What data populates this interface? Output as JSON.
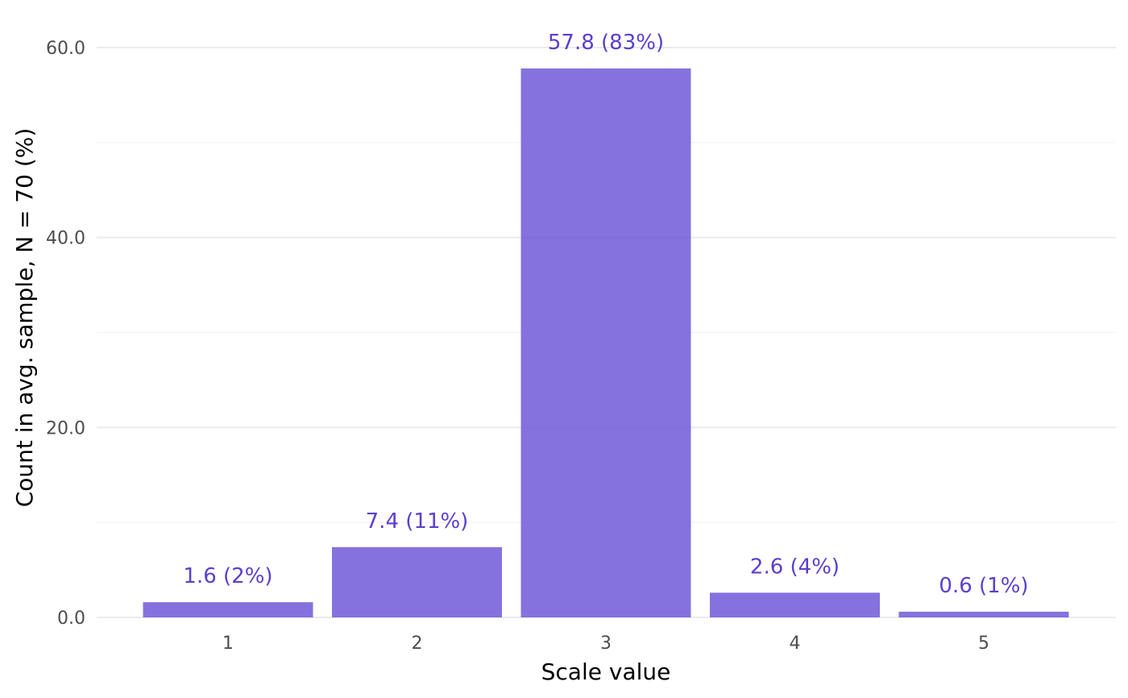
{
  "chart_data": {
    "type": "bar",
    "categories": [
      "1",
      "2",
      "3",
      "4",
      "5"
    ],
    "values": [
      1.6,
      7.4,
      57.8,
      2.6,
      0.6
    ],
    "data_labels": [
      "1.6 (2%)",
      "7.4 (11%)",
      "57.8 (83%)",
      "2.6 (4%)",
      "0.6 (1%)"
    ],
    "title": "",
    "xlabel": "Scale value",
    "ylabel": "Count in avg. sample, N = 70 (%)",
    "ylim": [
      0,
      60
    ],
    "yticks": [
      0,
      20,
      40,
      60
    ],
    "ytick_labels": [
      "0.0",
      "20.0",
      "40.0",
      "60.0"
    ],
    "grid": true,
    "legend": "none",
    "colors": {
      "bar": "#7059d8",
      "bar_opacity": 0.85,
      "label": "#5a3fcf"
    }
  }
}
